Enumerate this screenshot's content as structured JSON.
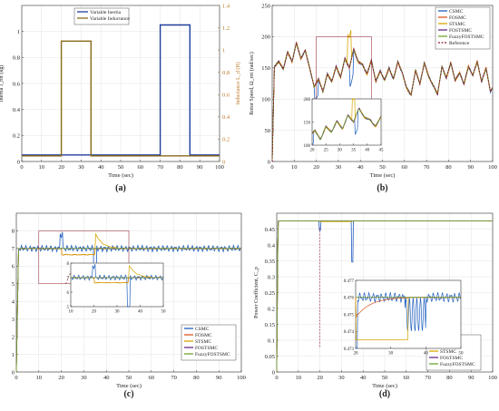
{
  "chart_data": [
    {
      "id": "a",
      "type": "line",
      "panel_label": "(a)",
      "xlabel": "Time (sec)",
      "ylabel": "Inertia J_rot (kg)",
      "y2label": "Inductance L_d (H)",
      "xlim": [
        0,
        100
      ],
      "ylim": [
        0,
        1.2
      ],
      "y2lim": [
        0,
        1.4
      ],
      "xticks": [
        0,
        10,
        20,
        30,
        40,
        50,
        60,
        70,
        80,
        90,
        100
      ],
      "yticks": [
        0,
        0.2,
        0.4,
        0.6,
        0.8,
        1
      ],
      "y2ticks": [
        0,
        0.2,
        0.4,
        0.6,
        0.8,
        1,
        1.2,
        1.4
      ],
      "grid": true,
      "legend_position": "top-center",
      "series": [
        {
          "name": "Variable Inertia",
          "color": "#1f3f9e",
          "axis": "left",
          "x": [
            0,
            70,
            70,
            85,
            85,
            100
          ],
          "y": [
            0.05,
            0.05,
            1.05,
            1.05,
            0.05,
            0.05
          ]
        },
        {
          "name": "Variable Inductance",
          "color": "#8a6a1a",
          "axis": "right",
          "x": [
            0,
            20,
            20,
            35,
            35,
            100
          ],
          "y": [
            0.05,
            0.05,
            1.08,
            1.08,
            0.05,
            0.05
          ]
        }
      ]
    },
    {
      "id": "b",
      "type": "line",
      "panel_label": "(b)",
      "xlabel": "Time (sec)",
      "ylabel": "Rotor Speed, Ω_rot (rad/sec)",
      "xlim": [
        0,
        100
      ],
      "ylim": [
        0,
        250
      ],
      "xticks": [
        0,
        10,
        20,
        30,
        40,
        50,
        60,
        70,
        80,
        90,
        100
      ],
      "yticks": [
        0,
        50,
        100,
        150,
        200,
        250
      ],
      "grid": true,
      "legend_position": "top-right",
      "reference": {
        "name": "Reference",
        "x": [
          0,
          1,
          3,
          5,
          7,
          9,
          11,
          13,
          15,
          17,
          19,
          21,
          23,
          25,
          27,
          29,
          31,
          33,
          35,
          37,
          39,
          41,
          43,
          45,
          47,
          49,
          51,
          53,
          55,
          57,
          59,
          61,
          63,
          65,
          67,
          69,
          71,
          73,
          75,
          77,
          79,
          81,
          83,
          85,
          87,
          89,
          91,
          93,
          95,
          97,
          99,
          100
        ],
        "y": [
          0,
          152,
          160,
          148,
          175,
          160,
          190,
          165,
          178,
          150,
          120,
          132,
          112,
          140,
          128,
          152,
          135,
          165,
          150,
          180,
          160,
          155,
          140,
          162,
          128,
          145,
          130,
          150,
          132,
          160,
          142,
          118,
          106,
          146,
          124,
          158,
          136,
          122,
          108,
          152,
          134,
          158,
          130,
          142,
          124,
          152,
          138,
          160,
          128,
          150,
          112,
          118
        ]
      },
      "controllers": [
        {
          "name": "CSMC",
          "color": "#1f5fbf"
        },
        {
          "name": "FOSMC",
          "color": "#d9541e"
        },
        {
          "name": "STSMC",
          "color": "#d8a600"
        },
        {
          "name": "FOSTSMC",
          "color": "#6a2a8a"
        },
        {
          "name": "FuzzyFOSTSMC",
          "color": "#6fa52c"
        }
      ],
      "events": [
        {
          "x": 20,
          "spike": -25,
          "who": "CSMC"
        },
        {
          "x": 35,
          "spike": 50,
          "who": "STSMC"
        },
        {
          "x": 36,
          "spike": -35,
          "who": "CSMC"
        }
      ],
      "inset": {
        "xlim": [
          20,
          45
        ],
        "ylim": [
          100,
          200
        ],
        "xticks": [
          20,
          25,
          30,
          35,
          40,
          45
        ],
        "yticks": [
          100,
          150,
          200
        ]
      }
    },
    {
      "id": "c",
      "type": "line",
      "panel_label": "(c)",
      "xlabel": "Time (sec)",
      "ylabel": "Tip Speed ratio, λ",
      "xlim": [
        0,
        100
      ],
      "ylim": [
        0,
        9
      ],
      "xticks": [
        0,
        10,
        20,
        30,
        40,
        50,
        60,
        70,
        80,
        90,
        100
      ],
      "yticks": [
        0,
        1,
        2,
        3,
        4,
        5,
        6,
        7,
        8
      ],
      "grid": true,
      "legend_position": "bottom-right",
      "steady_value": 7,
      "controllers": [
        {
          "name": "CSMC",
          "color": "#1f5fbf"
        },
        {
          "name": "FOSMC",
          "color": "#d9541e"
        },
        {
          "name": "STSMC",
          "color": "#d8a600"
        },
        {
          "name": "FOSTSMC",
          "color": "#6a2a8a"
        },
        {
          "name": "FuzzyFOSTSMC",
          "color": "#6fa52c"
        }
      ],
      "inset": {
        "xlim": [
          10,
          50
        ],
        "ylim": [
          5,
          8
        ],
        "xticks": [
          10,
          20,
          30,
          40,
          50
        ],
        "yticks": [
          5,
          6,
          7,
          8
        ]
      }
    },
    {
      "id": "d",
      "type": "line",
      "panel_label": "(d)",
      "xlabel": "Time (sec)",
      "ylabel": "Power Coefficient, C_p",
      "xlim": [
        0,
        100
      ],
      "ylim": [
        0,
        0.5
      ],
      "xticks": [
        0,
        10,
        20,
        30,
        40,
        50,
        60,
        70,
        80,
        90,
        100
      ],
      "yticks": [
        0,
        0.05,
        0.1,
        0.15,
        0.2,
        0.25,
        0.3,
        0.35,
        0.4,
        0.45
      ],
      "grid": true,
      "legend_position": "bottom-right",
      "steady_value": 0.476,
      "controllers": [
        {
          "name": "CSMC",
          "color": "#1f5fbf"
        },
        {
          "name": "FOSMC",
          "color": "#d9541e"
        },
        {
          "name": "STSMC",
          "color": "#d8a600"
        },
        {
          "name": "FOSTSMC",
          "color": "#6a2a8a"
        },
        {
          "name": "FuzzyFOSTSMC",
          "color": "#6fa52c"
        }
      ],
      "inset": {
        "xlim": [
          20,
          50
        ],
        "ylim": [
          0.473,
          0.477
        ],
        "xticks": [
          20,
          30,
          40,
          50
        ],
        "yticks": [
          0.473,
          0.474,
          0.475,
          0.476,
          0.477
        ]
      }
    }
  ]
}
